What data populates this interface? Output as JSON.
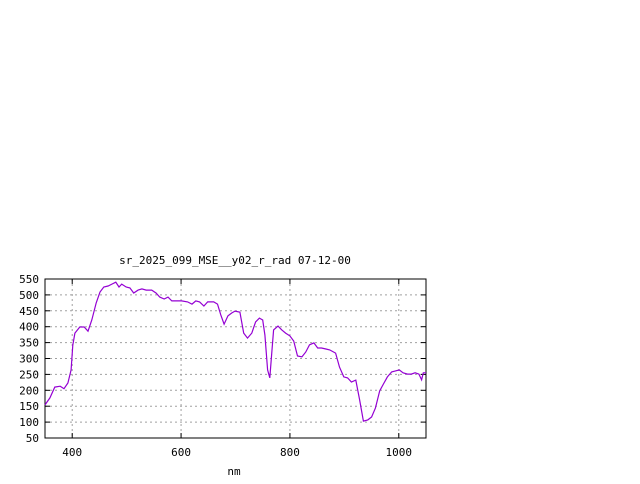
{
  "chart_data": {
    "type": "line",
    "title": "sr_2025_099_MSE__y02_r_rad 07-12-00",
    "xlabel": "nm",
    "ylabel": "",
    "xlim": [
      350,
      1050
    ],
    "ylim": [
      50,
      550
    ],
    "xticks": [
      400,
      600,
      800,
      1000
    ],
    "yticks": [
      50,
      100,
      150,
      200,
      250,
      300,
      350,
      400,
      450,
      500,
      550
    ],
    "grid": true,
    "line_color": "#9400d3",
    "x": [
      350,
      359,
      368,
      378,
      385,
      392,
      398,
      401,
      405,
      414,
      422,
      429,
      436,
      444,
      451,
      458,
      466,
      473,
      480,
      486,
      491,
      499,
      506,
      513,
      521,
      528,
      536,
      546,
      554,
      561,
      569,
      576,
      583,
      590,
      601,
      612,
      620,
      627,
      634,
      642,
      649,
      660,
      667,
      673,
      679,
      686,
      693,
      699,
      708,
      715,
      722,
      730,
      737,
      744,
      750,
      754,
      759,
      763,
      767,
      770,
      778,
      785,
      792,
      800,
      807,
      814,
      822,
      829,
      836,
      844,
      851,
      858,
      866,
      873,
      884,
      891,
      899,
      906,
      913,
      921,
      928,
      935,
      943,
      950,
      957,
      965,
      972,
      979,
      987,
      994,
      1001,
      1008,
      1016,
      1023,
      1030,
      1037,
      1042,
      1045,
      1050
    ],
    "y": [
      154,
      176,
      210,
      213,
      205,
      223,
      264,
      342,
      380,
      399,
      399,
      386,
      421,
      475,
      509,
      525,
      528,
      534,
      540,
      525,
      534,
      525,
      522,
      506,
      515,
      519,
      515,
      515,
      506,
      493,
      487,
      493,
      481,
      481,
      481,
      478,
      471,
      481,
      478,
      465,
      478,
      478,
      471,
      437,
      408,
      434,
      443,
      449,
      446,
      380,
      364,
      380,
      415,
      427,
      421,
      374,
      264,
      239,
      327,
      390,
      402,
      390,
      380,
      371,
      355,
      308,
      305,
      320,
      343,
      349,
      333,
      333,
      330,
      327,
      317,
      273,
      242,
      239,
      226,
      232,
      170,
      103,
      107,
      116,
      144,
      198,
      220,
      242,
      258,
      261,
      264,
      255,
      251,
      251,
      255,
      251,
      233,
      255,
      255
    ]
  }
}
